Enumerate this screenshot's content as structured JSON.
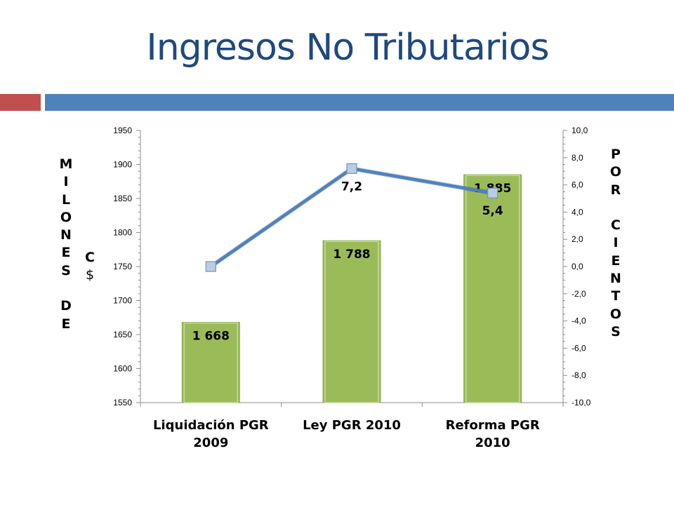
{
  "slide": {
    "title": "Ingresos No Tributarios"
  },
  "colors": {
    "title": "#1f497d",
    "accent_red": "#c0504d",
    "accent_blue": "#4f81bd",
    "bar_fill": "#9bbb59",
    "line": "#4f81bd",
    "marker": "#b9cde5"
  },
  "chart_data": {
    "type": "bar",
    "categories": [
      "Liquidación PGR 2009",
      "Ley PGR 2010",
      "Reforma PGR 2010"
    ],
    "category_lines": [
      [
        "Liquidación PGR",
        "2009"
      ],
      [
        "Ley PGR 2010"
      ],
      [
        "Reforma PGR",
        "2010"
      ]
    ],
    "series": [
      {
        "type": "bar",
        "axis": "left",
        "values": [
          1668,
          1788,
          1885
        ],
        "labels": [
          "1 668",
          "1 788",
          "1 885"
        ]
      },
      {
        "type": "line",
        "axis": "right",
        "values": [
          0.0,
          7.2,
          5.4
        ],
        "labels": [
          "",
          "7,2",
          "5,4"
        ]
      }
    ],
    "left_axis": {
      "label_letters": [
        "M",
        "I",
        "L",
        "O",
        "N",
        "E",
        "S",
        "",
        "D",
        "E"
      ],
      "unit_letters": [
        "C",
        "$"
      ],
      "ylim": [
        1550,
        1950
      ],
      "ticks": [
        1550,
        1600,
        1650,
        1700,
        1750,
        1800,
        1850,
        1900,
        1950
      ],
      "tick_labels": [
        "1550",
        "1600",
        "1650",
        "1700",
        "1750",
        "1800",
        "1850",
        "1900",
        "1950"
      ]
    },
    "right_axis": {
      "label_letters": [
        "P",
        "O",
        "R",
        "",
        "C",
        "I",
        "E",
        "N",
        "T",
        "O",
        "S"
      ],
      "ylim": [
        -10,
        10
      ],
      "ticks": [
        -10,
        -8,
        -6,
        -4,
        -2,
        0,
        2,
        4,
        6,
        8,
        10
      ],
      "tick_labels": [
        "-10,0",
        "-8,0",
        "-6,0",
        "-4,0",
        "-2,0",
        "0,0",
        "2,0",
        "4,0",
        "6,0",
        "8,0",
        "10,0"
      ]
    },
    "grid": false,
    "legend": "none"
  }
}
